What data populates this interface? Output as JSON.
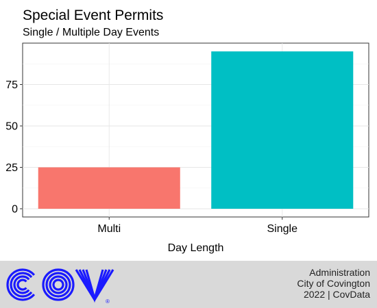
{
  "chart_data": {
    "type": "bar",
    "title": "Special Event Permits",
    "subtitle": "Single / Multiple Day Events",
    "xlabel": "Day Length",
    "ylabel": "",
    "categories": [
      "Multi",
      "Single"
    ],
    "values": [
      25,
      95
    ],
    "colors": [
      "#F8766D",
      "#00BFC4"
    ],
    "ylim": [
      0,
      100
    ],
    "yticks": [
      0,
      25,
      50,
      75
    ],
    "grid": true,
    "legend": false
  },
  "footer": {
    "line1": "Administration",
    "line2": "City of Covington",
    "line3": "2022 | CovData",
    "logo_text": "COV",
    "logo_mark": "®",
    "logo_color": "#1a1aff"
  }
}
